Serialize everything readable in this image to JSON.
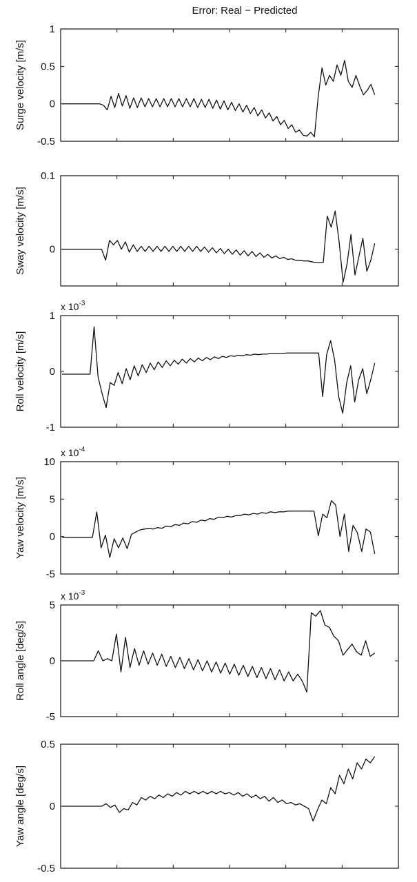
{
  "chart_data": [
    {
      "type": "line",
      "title": "Error: Real − Predicted",
      "ylabel": "Surge velocity [m/s]",
      "multiplier": "",
      "ylim": [
        -0.5,
        1
      ],
      "yticks": [
        {
          "value": -0.5,
          "label": "-0.5"
        },
        {
          "value": 0,
          "label": "0"
        },
        {
          "value": 0.5,
          "label": "0.5"
        },
        {
          "value": 1,
          "label": "1"
        }
      ],
      "baseline": 0.0,
      "series": [
        {
          "values": [
            0,
            0,
            0,
            0,
            0,
            0,
            0,
            0,
            0,
            0,
            0,
            -0.02,
            -0.08,
            0.1,
            -0.05,
            0.14,
            -0.03,
            0.11,
            -0.06,
            0.08,
            -0.05,
            0.08,
            -0.04,
            0.07,
            -0.04,
            0.07,
            -0.04,
            0.07,
            -0.04,
            0.07,
            -0.04,
            0.07,
            -0.04,
            0.07,
            -0.04,
            0.07,
            -0.05,
            0.06,
            -0.05,
            0.06,
            -0.06,
            0.05,
            -0.07,
            0.04,
            -0.08,
            0.02,
            -0.09,
            0.0,
            -0.11,
            -0.02,
            -0.13,
            -0.05,
            -0.16,
            -0.08,
            -0.19,
            -0.12,
            -0.23,
            -0.17,
            -0.28,
            -0.22,
            -0.33,
            -0.28,
            -0.38,
            -0.35,
            -0.42,
            -0.43,
            -0.38,
            -0.44,
            0.1,
            0.48,
            0.25,
            0.38,
            0.3,
            0.52,
            0.38,
            0.58,
            0.3,
            0.22,
            0.38,
            0.24,
            0.12,
            0.18,
            0.26,
            0.12
          ]
        }
      ]
    },
    {
      "type": "line",
      "title": "",
      "ylabel": "Sway velocity [m/s]",
      "multiplier": "",
      "ylim": [
        -0.05,
        0.1
      ],
      "yticks": [
        {
          "value": 0,
          "label": "0"
        },
        {
          "value": 0.1,
          "label": "0.1"
        }
      ],
      "baseline": 0.0,
      "series": [
        {
          "values": [
            0,
            0,
            0,
            0,
            0,
            0,
            0,
            0,
            0,
            0,
            0,
            -0.015,
            0.012,
            0.006,
            0.012,
            0.0,
            0.01,
            -0.004,
            0.006,
            -0.003,
            0.004,
            -0.003,
            0.004,
            -0.003,
            0.004,
            -0.003,
            0.004,
            -0.003,
            0.004,
            -0.003,
            0.004,
            -0.003,
            0.004,
            -0.003,
            0.004,
            -0.003,
            0.003,
            -0.004,
            0.002,
            -0.005,
            0.001,
            -0.006,
            0.0,
            -0.007,
            -0.001,
            -0.008,
            -0.002,
            -0.009,
            -0.003,
            -0.01,
            -0.005,
            -0.011,
            -0.007,
            -0.012,
            -0.009,
            -0.013,
            -0.011,
            -0.014,
            -0.013,
            -0.015,
            -0.015,
            -0.016,
            -0.016,
            -0.017,
            -0.018,
            -0.018,
            -0.018,
            0.045,
            0.03,
            0.052,
            0.01,
            -0.045,
            -0.02,
            0.02,
            -0.035,
            -0.01,
            0.015,
            -0.03,
            -0.015,
            0.008
          ]
        }
      ]
    },
    {
      "type": "line",
      "title": "",
      "ylabel": "Roll velocity [m/s]",
      "multiplier": "x 10",
      "multiplier_exp": "-3",
      "ylim": [
        -1,
        1
      ],
      "yticks": [
        {
          "value": -1,
          "label": "-1"
        },
        {
          "value": 0,
          "label": "0"
        },
        {
          "value": 1,
          "label": "1"
        }
      ],
      "baseline": -0.05,
      "series": [
        {
          "values": [
            -0.05,
            -0.05,
            -0.05,
            -0.05,
            -0.05,
            -0.05,
            -0.05,
            -0.05,
            0.8,
            -0.1,
            -0.4,
            -0.65,
            -0.2,
            -0.25,
            -0.02,
            -0.22,
            0.05,
            -0.15,
            0.1,
            -0.08,
            0.12,
            -0.02,
            0.15,
            0.03,
            0.17,
            0.07,
            0.19,
            0.1,
            0.2,
            0.13,
            0.22,
            0.15,
            0.23,
            0.17,
            0.24,
            0.19,
            0.25,
            0.21,
            0.26,
            0.23,
            0.27,
            0.25,
            0.28,
            0.27,
            0.29,
            0.28,
            0.3,
            0.29,
            0.31,
            0.3,
            0.31,
            0.31,
            0.32,
            0.32,
            0.32,
            0.32,
            0.33,
            0.33,
            0.33,
            0.33,
            0.33,
            0.33,
            0.33,
            0.33,
            0.33,
            -0.45,
            0.3,
            0.55,
            0.2,
            -0.45,
            -0.75,
            -0.2,
            0.1,
            -0.55,
            -0.15,
            0.05,
            -0.4,
            -0.15,
            0.15
          ]
        }
      ]
    },
    {
      "type": "line",
      "title": "",
      "ylabel": "Yaw velocity [m/s]",
      "multiplier": "x 10",
      "multiplier_exp": "-4",
      "ylim": [
        -5,
        10
      ],
      "yticks": [
        {
          "value": -5,
          "label": "-5"
        },
        {
          "value": 0,
          "label": "0"
        },
        {
          "value": 5,
          "label": "5"
        },
        {
          "value": 10,
          "label": "10"
        }
      ],
      "baseline": -0.1,
      "series": [
        {
          "values": [
            -0.1,
            -0.1,
            -0.1,
            -0.1,
            -0.1,
            -0.1,
            -0.1,
            -0.1,
            3.3,
            -1.5,
            0.2,
            -2.8,
            -0.3,
            -1.5,
            -0.2,
            -1.6,
            0.3,
            0.6,
            0.9,
            1.0,
            1.1,
            1.0,
            1.2,
            1.1,
            1.4,
            1.3,
            1.6,
            1.5,
            1.8,
            1.7,
            2.0,
            1.9,
            2.2,
            2.1,
            2.4,
            2.3,
            2.6,
            2.5,
            2.7,
            2.6,
            2.8,
            2.8,
            3.0,
            2.9,
            3.1,
            3.0,
            3.2,
            3.1,
            3.3,
            3.2,
            3.3,
            3.3,
            3.4,
            3.4,
            3.4,
            3.4,
            3.4,
            3.4,
            3.4,
            0.1,
            3.0,
            2.5,
            4.8,
            4.2,
            0.0,
            3.0,
            -2.0,
            1.5,
            0.5,
            -2.0,
            1.0,
            0.6,
            -2.3
          ]
        }
      ]
    },
    {
      "type": "line",
      "title": "",
      "ylabel": "Roll angle [deg/s]",
      "multiplier": "x 10",
      "multiplier_exp": "-3",
      "ylim": [
        -5,
        5
      ],
      "yticks": [
        {
          "value": -5,
          "label": "-5"
        },
        {
          "value": 0,
          "label": "0"
        },
        {
          "value": 5,
          "label": "5"
        }
      ],
      "baseline": 0.0,
      "series": [
        {
          "values": [
            0,
            0,
            0,
            0,
            0,
            0,
            0,
            0,
            0.9,
            0.0,
            0.2,
            0.0,
            2.4,
            -1.0,
            2.1,
            -0.6,
            1.1,
            -0.4,
            0.9,
            -0.3,
            0.7,
            -0.4,
            0.6,
            -0.5,
            0.4,
            -0.6,
            0.3,
            -0.7,
            0.2,
            -0.8,
            0.1,
            -0.9,
            0.0,
            -1.0,
            -0.1,
            -1.1,
            -0.2,
            -1.2,
            -0.3,
            -1.3,
            -0.4,
            -1.4,
            -0.5,
            -1.5,
            -0.6,
            -1.6,
            -0.7,
            -1.7,
            -0.8,
            -1.8,
            -1.0,
            -1.8,
            -1.2,
            -1.8,
            -2.8,
            4.3,
            4.0,
            4.5,
            3.2,
            3.0,
            2.2,
            1.8,
            0.5,
            1.0,
            1.5,
            0.8,
            0.5,
            1.8,
            0.4,
            0.7
          ]
        }
      ]
    },
    {
      "type": "line",
      "title": "",
      "ylabel": "Yaw angle [deg/s]",
      "multiplier": "",
      "ylim": [
        -0.5,
        0.5
      ],
      "yticks": [
        {
          "value": -0.5,
          "label": "-0.5"
        },
        {
          "value": 0,
          "label": "0"
        },
        {
          "value": 0.5,
          "label": "0.5"
        }
      ],
      "baseline": 0.0,
      "series": [
        {
          "values": [
            0,
            0,
            0,
            0,
            0,
            0,
            0,
            0,
            0,
            0,
            0.02,
            -0.01,
            0.01,
            -0.05,
            -0.02,
            -0.03,
            0.03,
            0.01,
            0.07,
            0.05,
            0.08,
            0.06,
            0.09,
            0.07,
            0.1,
            0.08,
            0.11,
            0.09,
            0.12,
            0.1,
            0.12,
            0.1,
            0.12,
            0.1,
            0.12,
            0.1,
            0.12,
            0.1,
            0.11,
            0.09,
            0.11,
            0.08,
            0.1,
            0.07,
            0.09,
            0.06,
            0.08,
            0.04,
            0.07,
            0.03,
            0.05,
            0.02,
            0.03,
            0.01,
            0.02,
            0.0,
            -0.02,
            -0.12,
            -0.03,
            0.05,
            0.02,
            0.15,
            0.1,
            0.25,
            0.18,
            0.3,
            0.22,
            0.35,
            0.3,
            0.38,
            0.35,
            0.4
          ]
        }
      ]
    }
  ]
}
